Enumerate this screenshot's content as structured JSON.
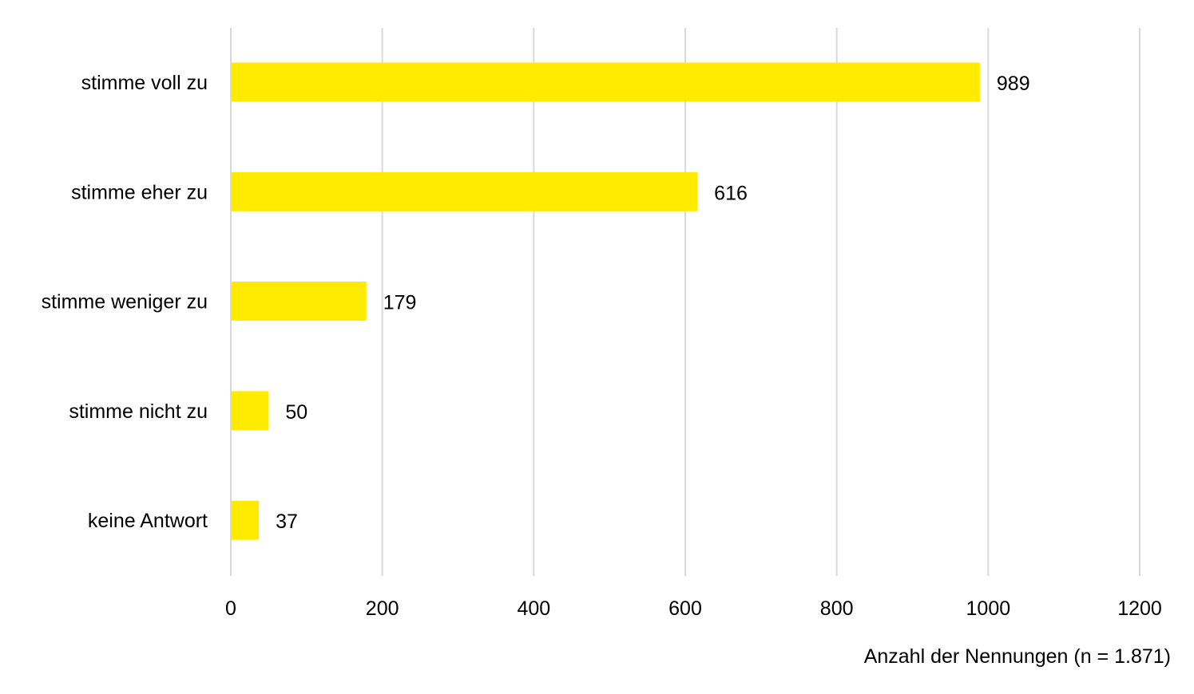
{
  "chart_data": {
    "type": "bar",
    "orientation": "horizontal",
    "categories": [
      "stimme voll zu",
      "stimme eher zu",
      "stimme weniger zu",
      "stimme nicht zu",
      "keine Antwort"
    ],
    "values": [
      989,
      616,
      179,
      50,
      37
    ],
    "data_labels": [
      "989",
      "616",
      "179",
      "50",
      "37"
    ],
    "xlabel": "Anzahl der Nennungen (n = 1.871)",
    "xlim": [
      0,
      1200
    ],
    "xticks": [
      0,
      200,
      400,
      600,
      800,
      1000,
      1200
    ],
    "xtick_labels": [
      "0",
      "200",
      "400",
      "600",
      "800",
      "1000",
      "1200"
    ],
    "grid": "vertical",
    "legend": "none",
    "bar_color": "#ffea00",
    "grid_color": "#d9d9d9"
  }
}
